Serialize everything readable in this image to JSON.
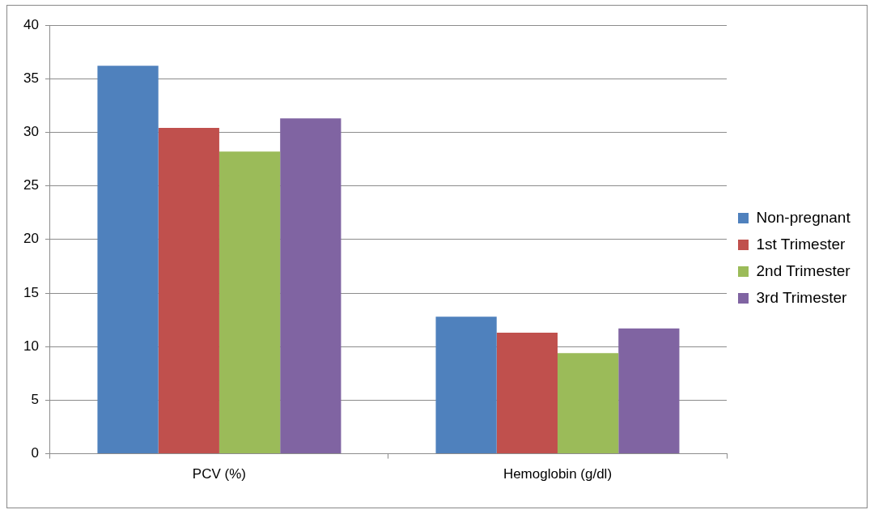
{
  "chart_data": {
    "type": "bar",
    "categories": [
      "PCV (%)",
      "Hemoglobin (g/dl)"
    ],
    "series": [
      {
        "name": "Non-pregnant",
        "color": "#4f81bd",
        "values": [
          36.2,
          12.8
        ]
      },
      {
        "name": "1st Trimester",
        "color": "#c0504d",
        "values": [
          30.4,
          11.3
        ]
      },
      {
        "name": "2nd Trimester",
        "color": "#9bbb59",
        "values": [
          28.2,
          9.4
        ]
      },
      {
        "name": "3rd Trimester",
        "color": "#8064a2",
        "values": [
          31.3,
          11.7
        ]
      }
    ],
    "ylim": [
      0,
      40
    ],
    "yticks": [
      0,
      5,
      10,
      15,
      20,
      25,
      30,
      35,
      40
    ],
    "grid": "y",
    "legend": "right"
  }
}
